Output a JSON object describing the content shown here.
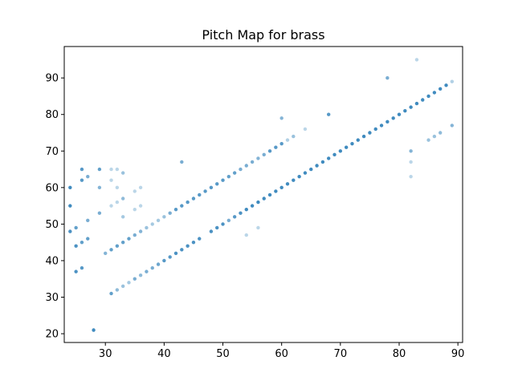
{
  "chart_data": {
    "type": "scatter",
    "title": "Pitch Map for brass",
    "xlabel": "",
    "ylabel": "",
    "xlim": [
      23.0,
      90.8
    ],
    "ylim": [
      17.6,
      98.6
    ],
    "xticks": [
      30,
      40,
      50,
      60,
      70,
      80,
      90
    ],
    "yticks": [
      20,
      30,
      40,
      50,
      60,
      70,
      80,
      90
    ],
    "grid": false,
    "marker_color": "#1f77b4",
    "series": [
      {
        "points": [
          [
            24,
            60,
            0.85
          ],
          [
            24,
            55,
            0.85
          ],
          [
            24,
            48,
            0.8
          ],
          [
            25,
            49,
            0.7
          ],
          [
            25,
            44,
            0.8
          ],
          [
            25,
            37,
            0.8
          ],
          [
            26,
            65,
            0.75
          ],
          [
            26,
            62,
            0.75
          ],
          [
            26,
            45,
            0.7
          ],
          [
            26,
            38,
            0.75
          ],
          [
            27,
            63,
            0.6
          ],
          [
            27,
            51,
            0.6
          ],
          [
            27,
            46,
            0.7
          ],
          [
            28,
            21,
            0.85
          ],
          [
            29,
            65,
            0.7
          ],
          [
            29,
            60,
            0.55
          ],
          [
            29,
            53,
            0.6
          ],
          [
            30,
            42,
            0.55
          ],
          [
            31,
            65,
            0.3
          ],
          [
            31,
            62,
            0.3
          ],
          [
            31,
            55,
            0.3
          ],
          [
            31,
            43,
            0.7
          ],
          [
            31,
            31,
            0.7
          ],
          [
            32,
            65,
            0.3
          ],
          [
            32,
            60,
            0.3
          ],
          [
            32,
            56,
            0.3
          ],
          [
            32,
            44,
            0.7
          ],
          [
            32,
            32,
            0.5
          ],
          [
            33,
            64,
            0.45
          ],
          [
            33,
            57,
            0.5
          ],
          [
            33,
            52,
            0.4
          ],
          [
            33,
            45,
            0.7
          ],
          [
            33,
            33,
            0.45
          ],
          [
            34,
            46,
            0.7
          ],
          [
            34,
            34,
            0.4
          ],
          [
            35,
            59,
            0.3
          ],
          [
            35,
            54,
            0.3
          ],
          [
            35,
            47,
            0.6
          ],
          [
            35,
            35,
            0.6
          ],
          [
            36,
            60,
            0.3
          ],
          [
            36,
            55,
            0.3
          ],
          [
            36,
            48,
            0.55
          ],
          [
            36,
            36,
            0.5
          ],
          [
            37,
            49,
            0.45
          ],
          [
            37,
            37,
            0.6
          ],
          [
            38,
            50,
            0.4
          ],
          [
            38,
            38,
            0.6
          ],
          [
            39,
            51,
            0.4
          ],
          [
            39,
            39,
            0.65
          ],
          [
            40,
            52,
            0.45
          ],
          [
            40,
            40,
            0.75
          ],
          [
            41,
            53,
            0.6
          ],
          [
            41,
            41,
            0.75
          ],
          [
            42,
            54,
            0.75
          ],
          [
            42,
            42,
            0.8
          ],
          [
            43,
            67,
            0.6
          ],
          [
            43,
            55,
            0.75
          ],
          [
            43,
            43,
            0.8
          ],
          [
            44,
            56,
            0.75
          ],
          [
            44,
            44,
            0.8
          ],
          [
            45,
            57,
            0.75
          ],
          [
            45,
            45,
            0.8
          ],
          [
            46,
            58,
            0.75
          ],
          [
            46,
            46,
            0.8
          ],
          [
            47,
            59,
            0.75
          ],
          [
            48,
            60,
            0.75
          ],
          [
            48,
            48,
            0.8
          ],
          [
            49,
            61,
            0.75
          ],
          [
            49,
            49,
            0.8
          ],
          [
            50,
            62,
            0.75
          ],
          [
            50,
            50,
            0.8
          ],
          [
            51,
            63,
            0.7
          ],
          [
            51,
            51,
            0.6
          ],
          [
            52,
            64,
            0.7
          ],
          [
            52,
            52,
            0.75
          ],
          [
            53,
            65,
            0.6
          ],
          [
            53,
            53,
            0.8
          ],
          [
            54,
            66,
            0.6
          ],
          [
            54,
            54,
            0.85
          ],
          [
            54,
            47,
            0.3
          ],
          [
            55,
            67,
            0.6
          ],
          [
            55,
            55,
            0.85
          ],
          [
            56,
            68,
            0.55
          ],
          [
            56,
            56,
            0.85
          ],
          [
            56,
            49,
            0.3
          ],
          [
            57,
            69,
            0.6
          ],
          [
            57,
            57,
            0.85
          ],
          [
            58,
            70,
            0.75
          ],
          [
            58,
            58,
            0.85
          ],
          [
            59,
            71,
            0.75
          ],
          [
            59,
            59,
            0.85
          ],
          [
            60,
            79,
            0.55
          ],
          [
            60,
            72,
            0.75
          ],
          [
            60,
            60,
            0.85
          ],
          [
            61,
            73,
            0.35
          ],
          [
            61,
            61,
            0.85
          ],
          [
            62,
            74,
            0.45
          ],
          [
            62,
            62,
            0.85
          ],
          [
            63,
            63,
            0.85
          ],
          [
            64,
            76,
            0.3
          ],
          [
            64,
            64,
            0.85
          ],
          [
            65,
            65,
            0.85
          ],
          [
            66,
            66,
            0.85
          ],
          [
            67,
            67,
            0.85
          ],
          [
            68,
            80,
            0.75
          ],
          [
            68,
            68,
            0.85
          ],
          [
            69,
            69,
            0.85
          ],
          [
            70,
            70,
            0.85
          ],
          [
            71,
            71,
            0.85
          ],
          [
            72,
            72,
            0.85
          ],
          [
            73,
            73,
            0.85
          ],
          [
            74,
            74,
            0.85
          ],
          [
            75,
            75,
            0.85
          ],
          [
            76,
            76,
            0.85
          ],
          [
            77,
            77,
            0.85
          ],
          [
            78,
            90,
            0.6
          ],
          [
            78,
            78,
            0.85
          ],
          [
            79,
            79,
            0.85
          ],
          [
            80,
            80,
            0.85
          ],
          [
            81,
            81,
            0.85
          ],
          [
            82,
            82,
            0.85
          ],
          [
            82,
            70,
            0.55
          ],
          [
            82,
            67,
            0.3
          ],
          [
            82,
            63,
            0.3
          ],
          [
            83,
            95,
            0.3
          ],
          [
            83,
            83,
            0.85
          ],
          [
            84,
            84,
            0.85
          ],
          [
            85,
            85,
            0.85
          ],
          [
            85,
            73,
            0.45
          ],
          [
            86,
            86,
            0.85
          ],
          [
            86,
            74,
            0.45
          ],
          [
            87,
            87,
            0.85
          ],
          [
            87,
            75,
            0.5
          ],
          [
            88,
            88,
            0.85
          ],
          [
            89,
            89,
            0.35
          ],
          [
            89,
            77,
            0.55
          ]
        ]
      }
    ]
  }
}
